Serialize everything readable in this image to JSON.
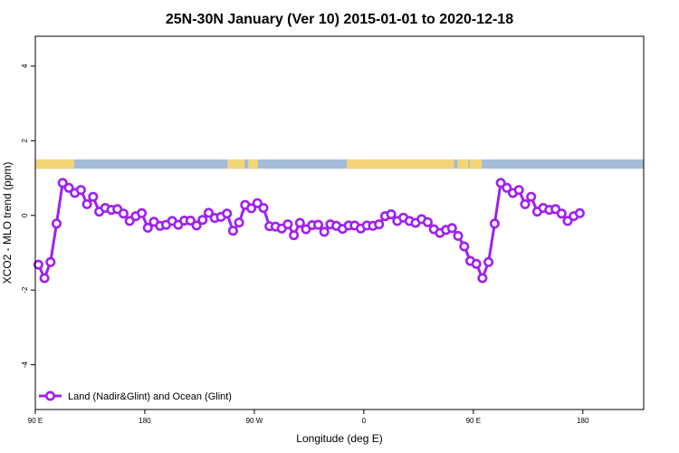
{
  "chart_data": {
    "type": "line",
    "title": "25N-30N January (Ver 10)   2015-01-01 to 2020-12-18",
    "xlabel": "Longitude (deg E)",
    "ylabel": "XCO2 - MLO trend (ppm)",
    "xlim": [
      90,
      590
    ],
    "ylim": [
      -5.2,
      4.8
    ],
    "xticks": [
      {
        "value": 90,
        "label": "90 E"
      },
      {
        "value": 180,
        "label": "180"
      },
      {
        "value": 270,
        "label": "90 W"
      },
      {
        "value": 360,
        "label": "0"
      },
      {
        "value": 450,
        "label": "90 E"
      },
      {
        "value": 540,
        "label": "180"
      }
    ],
    "yticks": [
      {
        "value": -4,
        "label": "-4"
      },
      {
        "value": -2,
        "label": "-2"
      },
      {
        "value": 0,
        "label": "0"
      },
      {
        "value": 2,
        "label": "2"
      },
      {
        "value": 4,
        "label": "4"
      }
    ],
    "grid": false,
    "legend_position": "bottom-left",
    "land_ocean_band": {
      "y_range": [
        1.25,
        1.5
      ],
      "ocean_color": "#a5bcd9",
      "land_color": "#f3d577",
      "land_segments_lon": [
        [
          90,
          122
        ],
        [
          248,
          262
        ],
        [
          265,
          273
        ],
        [
          346,
          434
        ],
        [
          437,
          446
        ],
        [
          447,
          457
        ]
      ]
    },
    "series": [
      {
        "name": "Land (Nadir&Glint) and Ocean (Glint)",
        "color": "#a020f0",
        "x": [
          92.5,
          97.5,
          102.5,
          107.5,
          112.5,
          117.5,
          122.5,
          127.5,
          132.5,
          137.5,
          142.5,
          147.5,
          152.5,
          157.5,
          162.5,
          167.5,
          172.5,
          177.5,
          182.5,
          187.5,
          192.5,
          197.5,
          202.5,
          207.5,
          212.5,
          217.5,
          222.5,
          227.5,
          232.5,
          237.5,
          242.5,
          247.5,
          252.5,
          257.5,
          262.5,
          267.5,
          272.5,
          277.5,
          282.5,
          287.5,
          292.5,
          297.5,
          302.5,
          307.5,
          312.5,
          317.5,
          322.5,
          327.5,
          332.5,
          337.5,
          342.5,
          347.5,
          352.5,
          357.5,
          362.5,
          367.5,
          372.5,
          377.5,
          382.5,
          387.5,
          392.5,
          397.5,
          402.5,
          407.5,
          412.5,
          417.5,
          422.5,
          427.5,
          432.5,
          437.5,
          442.5,
          447.5,
          452.5,
          457.5,
          462.5,
          467.5,
          472.5,
          477.5,
          482.5,
          487.5,
          492.5,
          497.5,
          502.5,
          507.5,
          512.5,
          517.5,
          522.5,
          527.5,
          532.5,
          537.5
        ],
        "values": [
          -1.32,
          -1.68,
          -1.25,
          -0.22,
          0.87,
          0.74,
          0.6,
          0.68,
          0.3,
          0.5,
          0.1,
          0.2,
          0.15,
          0.17,
          0.05,
          -0.15,
          -0.02,
          0.06,
          -0.33,
          -0.17,
          -0.28,
          -0.25,
          -0.15,
          -0.25,
          -0.14,
          -0.14,
          -0.27,
          -0.12,
          0.07,
          -0.07,
          -0.04,
          0.05,
          -0.41,
          -0.19,
          0.28,
          0.19,
          0.33,
          0.2,
          -0.29,
          -0.3,
          -0.35,
          -0.24,
          -0.53,
          -0.2,
          -0.37,
          -0.26,
          -0.25,
          -0.44,
          -0.24,
          -0.28,
          -0.36,
          -0.27,
          -0.27,
          -0.35,
          -0.27,
          -0.28,
          -0.24,
          -0.02,
          0.03,
          -0.15,
          -0.06,
          -0.15,
          -0.2,
          -0.1,
          -0.18,
          -0.37,
          -0.47,
          -0.39,
          -0.34,
          -0.55,
          -0.83,
          -1.22,
          -1.3,
          -1.68,
          -1.25,
          -0.22,
          0.87,
          0.74,
          0.6,
          0.68,
          0.3,
          0.5,
          0.1,
          0.2,
          0.15,
          0.17,
          0.05,
          -0.15,
          -0.02,
          0.06
        ]
      }
    ]
  }
}
